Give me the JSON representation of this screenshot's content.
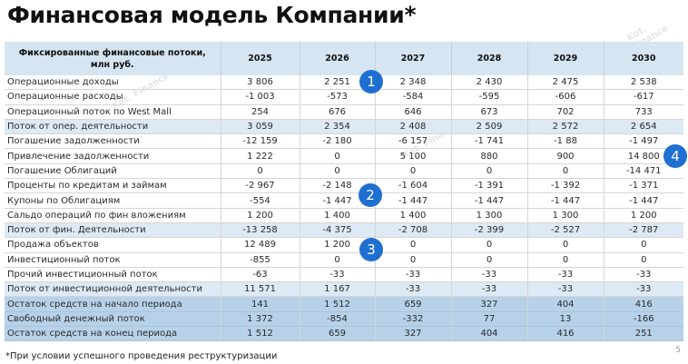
{
  "title": "Финансовая модель Компании*",
  "table": {
    "header": {
      "label": "Фиксированные финансовые потоки, млн руб.",
      "years": [
        "2025",
        "2026",
        "2027",
        "2028",
        "2029",
        "2030"
      ]
    },
    "rows": [
      {
        "label": "Операционные доходы",
        "values": [
          "3 806",
          "2 251",
          "2 348",
          "2 430",
          "2 475",
          "2 538"
        ],
        "style": "normal"
      },
      {
        "label": "Операционные расходы",
        "values": [
          "-1 003",
          "-573",
          "-584",
          "-595",
          "-606",
          "-617"
        ],
        "style": "normal"
      },
      {
        "label": "Операционный поток по West Mall",
        "values": [
          "254",
          "676",
          "646",
          "673",
          "702",
          "733"
        ],
        "style": "normal"
      },
      {
        "label": "Поток от опер. деятельности",
        "values": [
          "3 059",
          "2 354",
          "2 408",
          "2 509",
          "2 572",
          "2 654"
        ],
        "style": "sub"
      },
      {
        "label": "Погашение задолженности",
        "values": [
          "-12 159",
          "-2 180",
          "-6 157",
          "-1 741",
          "-1 88",
          "-1 497"
        ],
        "style": "normal"
      },
      {
        "label": "Привлечение задолженности",
        "values": [
          "1 222",
          "0",
          "5 100",
          "880",
          "900",
          "14 800"
        ],
        "style": "normal"
      },
      {
        "label": "Погашение Облигаций",
        "values": [
          "0",
          "0",
          "0",
          "0",
          "0",
          "-14 471"
        ],
        "style": "normal"
      },
      {
        "label": "Проценты по кредитам и займам",
        "values": [
          "-2 967",
          "-2 148",
          "-1 604",
          "-1 391",
          "-1 392",
          "-1 371"
        ],
        "style": "normal"
      },
      {
        "label": "Купоны по Облигациям",
        "values": [
          "-554",
          "-1 447",
          "-1 447",
          "-1 447",
          "-1 447",
          "-1 447"
        ],
        "style": "normal"
      },
      {
        "label": "Сальдо операций по фин вложениям",
        "values": [
          "1 200",
          "1 400",
          "1 400",
          "1 300",
          "1 300",
          "1 200"
        ],
        "style": "normal"
      },
      {
        "label": "Поток от фин. Деятельности",
        "values": [
          "-13 258",
          "-4 375",
          "-2 708",
          "-2 399",
          "-2 527",
          "-2 787"
        ],
        "style": "sub"
      },
      {
        "label": "Продажа объектов",
        "values": [
          "12 489",
          "1 200",
          "0",
          "0",
          "0",
          "0"
        ],
        "style": "normal"
      },
      {
        "label": "Инвестиционный поток",
        "values": [
          "-855",
          "0",
          "0",
          "0",
          "0",
          "0"
        ],
        "style": "normal"
      },
      {
        "label": "Прочий инвестиционный поток",
        "values": [
          "-63",
          "-33",
          "-33",
          "-33",
          "-33",
          "-33"
        ],
        "style": "normal"
      },
      {
        "label": "Поток от инвестиционной деятельности",
        "values": [
          "11 571",
          "1 167",
          "-33",
          "-33",
          "-33",
          "-33"
        ],
        "style": "sub"
      },
      {
        "label": "Остаток средств на начало периода",
        "values": [
          "141",
          "1 512",
          "659",
          "327",
          "404",
          "416"
        ],
        "style": "total"
      },
      {
        "label": "Свободный денежный поток",
        "values": [
          "1 372",
          "-854",
          "-332",
          "77",
          "13",
          "-166"
        ],
        "style": "total"
      },
      {
        "label": "Остаток средств на конец периода",
        "values": [
          "1 512",
          "659",
          "327",
          "404",
          "416",
          "251"
        ],
        "style": "total"
      }
    ]
  },
  "badges": [
    {
      "number": "1",
      "color": "#1f6fd1"
    },
    {
      "number": "2",
      "color": "#1f6fd1"
    },
    {
      "number": "3",
      "color": "#1f6fd1"
    },
    {
      "number": "4",
      "color": "#1f6fd1"
    }
  ],
  "footnote": "*При условии успешного проведения реструктуризации",
  "page_number": "5",
  "watermark": "Kot. Finance",
  "colors": {
    "header_bg": "#d5e5f2",
    "subtotal_bg": "#dde9f5",
    "total_bg": "#b7d1e9",
    "badge": "#1f6fd1"
  }
}
